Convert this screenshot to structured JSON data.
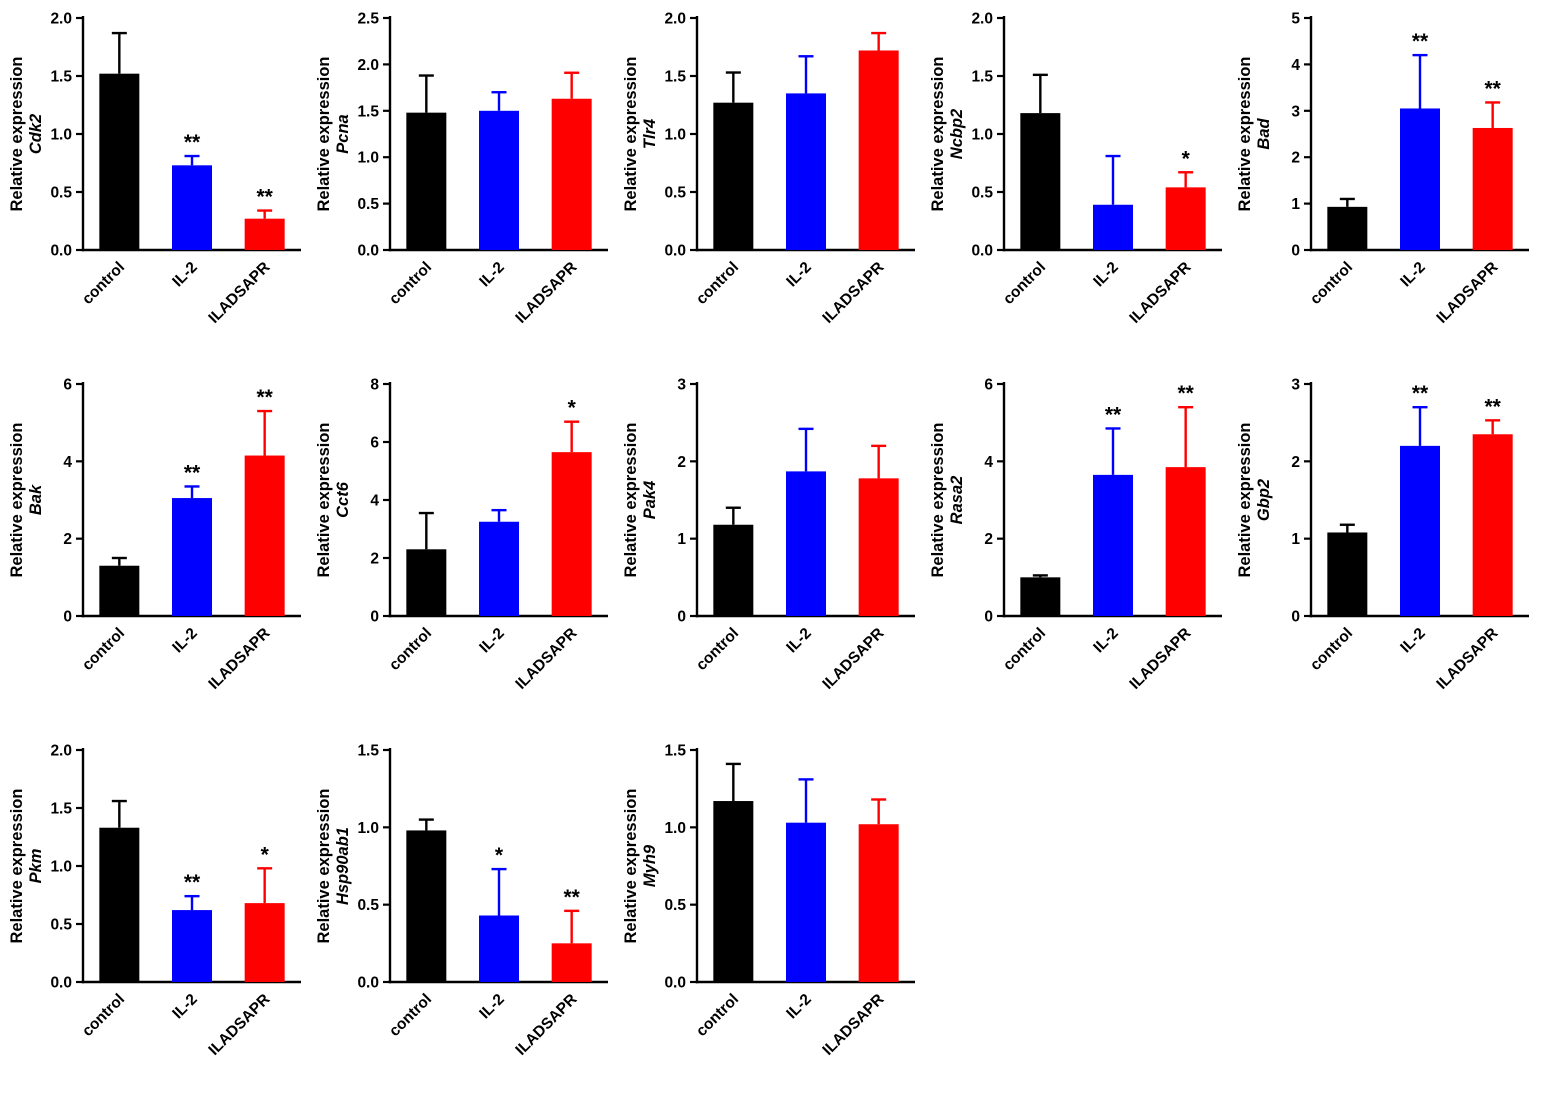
{
  "figure": {
    "background": "#ffffff",
    "layout": "5 columns x 3 rows, 13 bar-chart panels"
  },
  "chart_data": {
    "type": "bar",
    "categories": [
      "control",
      "IL-2",
      "ILADSAPR"
    ],
    "colors": [
      "#000000",
      "#0000FF",
      "#FF0000"
    ],
    "ylabel": "Relative expression",
    "legend_position": "none",
    "grid": false,
    "error_bars": "upper only, same color as bar, capped",
    "panels": [
      {
        "gene": "Cdk2",
        "ylim": [
          0,
          2
        ],
        "yticks": [
          0,
          0.5,
          1,
          1.5,
          2
        ],
        "dec": 1,
        "values": [
          1.52,
          0.73,
          0.27
        ],
        "errors": [
          0.35,
          0.08,
          0.07
        ],
        "sig": [
          "",
          "**",
          "**"
        ]
      },
      {
        "gene": "Pcna",
        "ylim": [
          0,
          2.5
        ],
        "yticks": [
          0,
          0.5,
          1,
          1.5,
          2,
          2.5
        ],
        "dec": 1,
        "values": [
          1.48,
          1.5,
          1.63
        ],
        "errors": [
          0.4,
          0.2,
          0.28
        ],
        "sig": [
          "",
          "",
          ""
        ]
      },
      {
        "gene": "Tlr4",
        "ylim": [
          0,
          2
        ],
        "yticks": [
          0,
          0.5,
          1,
          1.5,
          2
        ],
        "dec": 1,
        "values": [
          1.27,
          1.35,
          1.72
        ],
        "errors": [
          0.26,
          0.32,
          0.15
        ],
        "sig": [
          "",
          "",
          ""
        ]
      },
      {
        "gene": "Ncbp2",
        "ylim": [
          0,
          2
        ],
        "yticks": [
          0,
          0.5,
          1,
          1.5,
          2
        ],
        "dec": 1,
        "values": [
          1.18,
          0.39,
          0.54
        ],
        "errors": [
          0.33,
          0.42,
          0.13
        ],
        "sig": [
          "",
          "",
          "*"
        ]
      },
      {
        "gene": "Bad",
        "ylim": [
          0,
          5
        ],
        "yticks": [
          0,
          1,
          2,
          3,
          4,
          5
        ],
        "dec": 0,
        "values": [
          0.93,
          3.05,
          2.63
        ],
        "errors": [
          0.17,
          1.15,
          0.55
        ],
        "sig": [
          "",
          "**",
          "**"
        ]
      },
      {
        "gene": "Bak",
        "ylim": [
          0,
          6
        ],
        "yticks": [
          0,
          2,
          4,
          6
        ],
        "dec": 0,
        "values": [
          1.3,
          3.05,
          4.15
        ],
        "errors": [
          0.2,
          0.3,
          1.15
        ],
        "sig": [
          "",
          "**",
          "**"
        ]
      },
      {
        "gene": "Cct6",
        "ylim": [
          0,
          8
        ],
        "yticks": [
          0,
          2,
          4,
          6,
          8
        ],
        "dec": 0,
        "values": [
          2.3,
          3.25,
          5.65
        ],
        "errors": [
          1.25,
          0.4,
          1.05
        ],
        "sig": [
          "",
          "",
          "*"
        ]
      },
      {
        "gene": "Pak4",
        "ylim": [
          0,
          3
        ],
        "yticks": [
          0,
          1,
          2,
          3
        ],
        "dec": 0,
        "values": [
          1.18,
          1.87,
          1.78
        ],
        "errors": [
          0.22,
          0.55,
          0.42
        ],
        "sig": [
          "",
          "",
          ""
        ]
      },
      {
        "gene": "Rasa2",
        "ylim": [
          0,
          6
        ],
        "yticks": [
          0,
          2,
          4,
          6
        ],
        "dec": 0,
        "values": [
          1.0,
          3.65,
          3.85
        ],
        "errors": [
          0.05,
          1.2,
          1.55
        ],
        "sig": [
          "",
          "**",
          "**"
        ]
      },
      {
        "gene": "Gbp2",
        "ylim": [
          0,
          3
        ],
        "yticks": [
          0,
          1,
          2,
          3
        ],
        "dec": 0,
        "values": [
          1.08,
          2.2,
          2.35
        ],
        "errors": [
          0.1,
          0.5,
          0.18
        ],
        "sig": [
          "",
          "**",
          "**"
        ]
      },
      {
        "gene": "Pkm",
        "ylim": [
          0,
          2
        ],
        "yticks": [
          0,
          0.5,
          1,
          1.5,
          2
        ],
        "dec": 1,
        "values": [
          1.33,
          0.62,
          0.68
        ],
        "errors": [
          0.23,
          0.12,
          0.3
        ],
        "sig": [
          "",
          "**",
          "*"
        ]
      },
      {
        "gene": "Hsp90ab1",
        "ylim": [
          0,
          1.5
        ],
        "yticks": [
          0,
          0.5,
          1,
          1.5
        ],
        "dec": 1,
        "values": [
          0.98,
          0.43,
          0.25
        ],
        "errors": [
          0.07,
          0.3,
          0.21
        ],
        "sig": [
          "",
          "*",
          "**"
        ]
      },
      {
        "gene": "Myh9",
        "ylim": [
          0,
          1.5
        ],
        "yticks": [
          0,
          0.5,
          1,
          1.5
        ],
        "dec": 1,
        "values": [
          1.17,
          1.03,
          1.02
        ],
        "errors": [
          0.24,
          0.28,
          0.16
        ],
        "sig": [
          "",
          "",
          ""
        ]
      }
    ]
  }
}
